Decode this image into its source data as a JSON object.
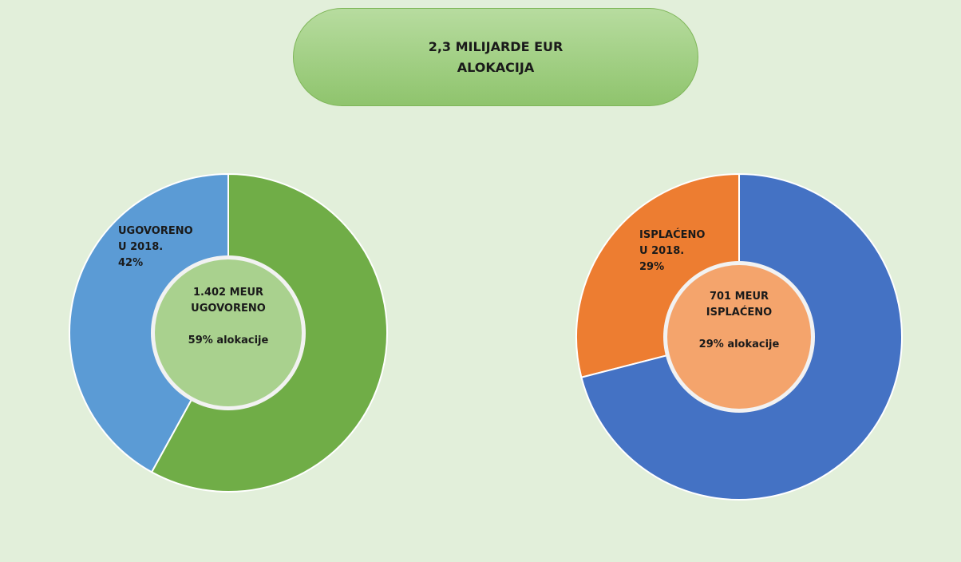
{
  "header": {
    "title": "2,3 MILIJARDE EUR\nALOKACIJA"
  },
  "chart_data": [
    {
      "type": "pie",
      "categories": [
        "UGOVORENO\nU 2018.",
        null
      ],
      "values": [
        42,
        58
      ],
      "value_labels": [
        "42%",
        null
      ],
      "colors": [
        "#5b9bd5",
        "#70ad47"
      ],
      "center_color": "#a9d18e",
      "center_text": "1.402 MEUR\nUGOVORENO\n\n59% alokacije"
    },
    {
      "type": "pie",
      "categories": [
        "ISPLAĆENO\nU 2018.",
        null
      ],
      "values": [
        29,
        71
      ],
      "value_labels": [
        "29%",
        null
      ],
      "colors": [
        "#ed7d31",
        "#4472c4"
      ],
      "center_color": "#f4a46c",
      "center_text": "701 MEUR\nISPLAĆENO\n\n29% alokacije"
    }
  ]
}
